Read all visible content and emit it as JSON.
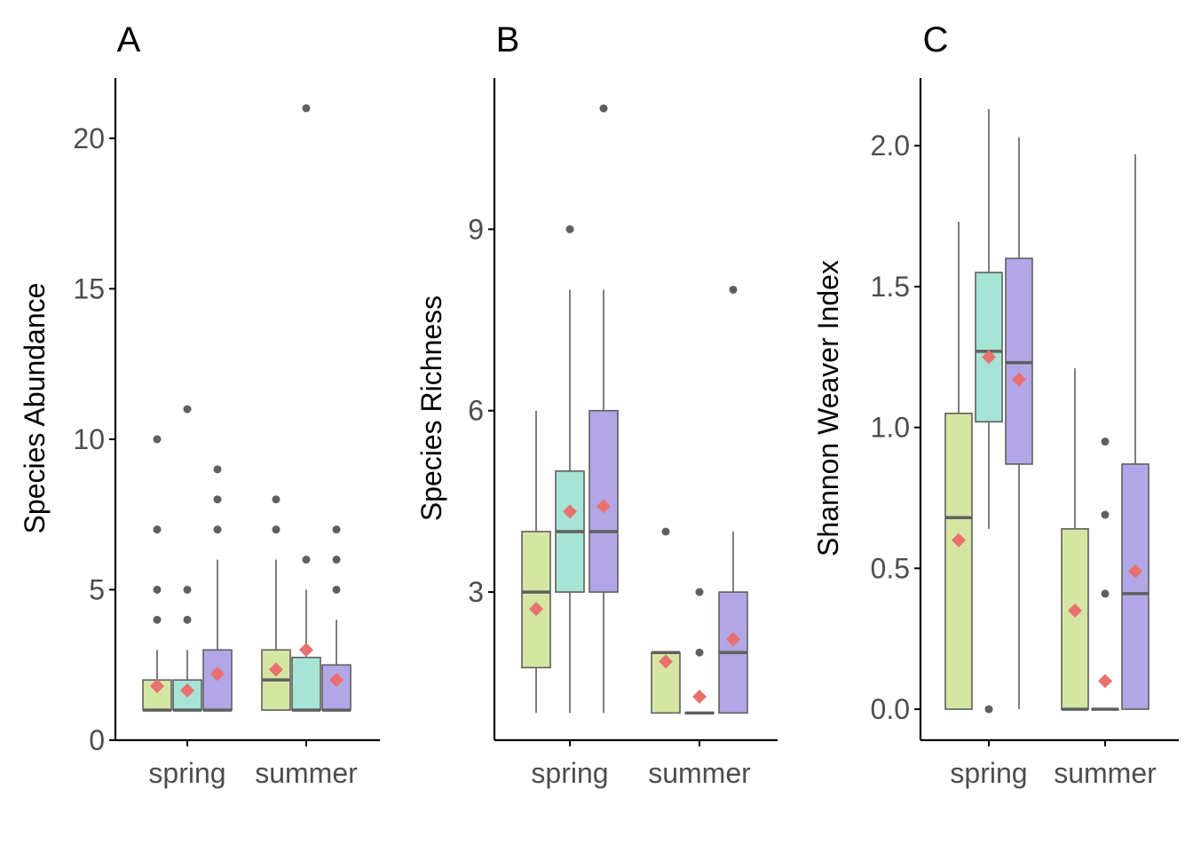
{
  "colors": {
    "groups": [
      "#d5e6a3",
      "#a6e4d6",
      "#b3a6e6"
    ],
    "box_stroke": "#5f5f5f",
    "median": "#5f5f5f",
    "whisker": "#5f5f5f",
    "outlier": "#5f5f5f",
    "mean_marker": "#e8716f",
    "axis": "#000000",
    "tick_label": "#4d4d4d",
    "text": "#000000"
  },
  "chart_data": [
    {
      "type": "boxplot",
      "panel_label": "A",
      "ylabel": "Species Abundance",
      "xlabel": "",
      "categories": [
        "spring",
        "summer"
      ],
      "ylim": [
        0,
        22
      ],
      "yticks": [
        0,
        5,
        10,
        15,
        20
      ],
      "ytick_labels": [
        "0",
        "5",
        "10",
        "15",
        "20"
      ],
      "boxes": [
        [
          {
            "q1": 1,
            "median": 1,
            "q3": 2,
            "whisker_low": 1,
            "whisker_high": 3,
            "mean": 1.8,
            "outliers": [
              4,
              5,
              7,
              10
            ]
          },
          {
            "q1": 1,
            "median": 1,
            "q3": 2,
            "whisker_low": 1,
            "whisker_high": 3,
            "mean": 1.65,
            "outliers": [
              4,
              5,
              11
            ]
          },
          {
            "q1": 1,
            "median": 1,
            "q3": 3,
            "whisker_low": 1,
            "whisker_high": 6,
            "mean": 2.2,
            "outliers": [
              7,
              8,
              9
            ]
          }
        ],
        [
          {
            "q1": 1,
            "median": 2,
            "q3": 3,
            "whisker_low": 1,
            "whisker_high": 6,
            "mean": 2.35,
            "outliers": [
              7,
              8
            ]
          },
          {
            "q1": 1,
            "median": 1,
            "q3": 2.75,
            "whisker_low": 1,
            "whisker_high": 5,
            "mean": 3.0,
            "outliers": [
              6,
              21
            ]
          },
          {
            "q1": 1,
            "median": 1,
            "q3": 2.5,
            "whisker_low": 1,
            "whisker_high": 4,
            "mean": 2.0,
            "outliers": [
              5,
              6,
              7
            ]
          }
        ]
      ]
    },
    {
      "type": "boxplot",
      "panel_label": "B",
      "ylabel": "Species Richness",
      "xlabel": "",
      "categories": [
        "spring",
        "summer"
      ],
      "ylim": [
        0.55,
        11.5
      ],
      "yticks": [
        3,
        6,
        9
      ],
      "ytick_labels": [
        "3",
        "6",
        "9"
      ],
      "boxes": [
        [
          {
            "q1": 1.75,
            "median": 3,
            "q3": 4,
            "whisker_low": 1,
            "whisker_high": 6,
            "mean": 2.72,
            "outliers": []
          },
          {
            "q1": 3,
            "median": 4,
            "q3": 5,
            "whisker_low": 1,
            "whisker_high": 8,
            "mean": 4.33,
            "outliers": [
              9
            ]
          },
          {
            "q1": 3,
            "median": 4,
            "q3": 6,
            "whisker_low": 1,
            "whisker_high": 8,
            "mean": 4.42,
            "outliers": [
              11
            ]
          }
        ],
        [
          {
            "q1": 1,
            "median": 2,
            "q3": 2,
            "whisker_low": 1,
            "whisker_high": 2,
            "mean": 1.85,
            "outliers": [
              4
            ]
          },
          {
            "q1": 1,
            "median": 1,
            "q3": 1,
            "whisker_low": 1,
            "whisker_high": 1,
            "mean": 1.27,
            "outliers": [
              2,
              3
            ]
          },
          {
            "q1": 1,
            "median": 2,
            "q3": 3,
            "whisker_low": 1,
            "whisker_high": 4,
            "mean": 2.22,
            "outliers": [
              8
            ]
          }
        ]
      ]
    },
    {
      "type": "boxplot",
      "panel_label": "C",
      "ylabel": "Shannon Weaver Index",
      "xlabel": "",
      "categories": [
        "spring",
        "summer"
      ],
      "ylim": [
        -0.11,
        2.24
      ],
      "yticks": [
        0.0,
        0.5,
        1.0,
        1.5,
        2.0
      ],
      "ytick_labels": [
        "0.0",
        "0.5",
        "1.0",
        "1.5",
        "2.0"
      ],
      "boxes": [
        [
          {
            "q1": 0.0,
            "median": 0.68,
            "q3": 1.05,
            "whisker_low": 0.0,
            "whisker_high": 1.73,
            "mean": 0.6,
            "outliers": []
          },
          {
            "q1": 1.02,
            "median": 1.27,
            "q3": 1.55,
            "whisker_low": 0.64,
            "whisker_high": 2.13,
            "mean": 1.25,
            "outliers": [
              0.0
            ]
          },
          {
            "q1": 0.87,
            "median": 1.23,
            "q3": 1.6,
            "whisker_low": 0.0,
            "whisker_high": 2.03,
            "mean": 1.17,
            "outliers": []
          }
        ],
        [
          {
            "q1": 0.0,
            "median": 0.0,
            "q3": 0.64,
            "whisker_low": 0.0,
            "whisker_high": 1.21,
            "mean": 0.35,
            "outliers": []
          },
          {
            "q1": 0.0,
            "median": 0.0,
            "q3": 0.0,
            "whisker_low": 0.0,
            "whisker_high": 0.0,
            "mean": 0.1,
            "outliers": [
              0.41,
              0.69,
              0.95
            ]
          },
          {
            "q1": 0.0,
            "median": 0.41,
            "q3": 0.87,
            "whisker_low": 0.0,
            "whisker_high": 1.97,
            "mean": 0.49,
            "outliers": []
          }
        ]
      ]
    }
  ]
}
